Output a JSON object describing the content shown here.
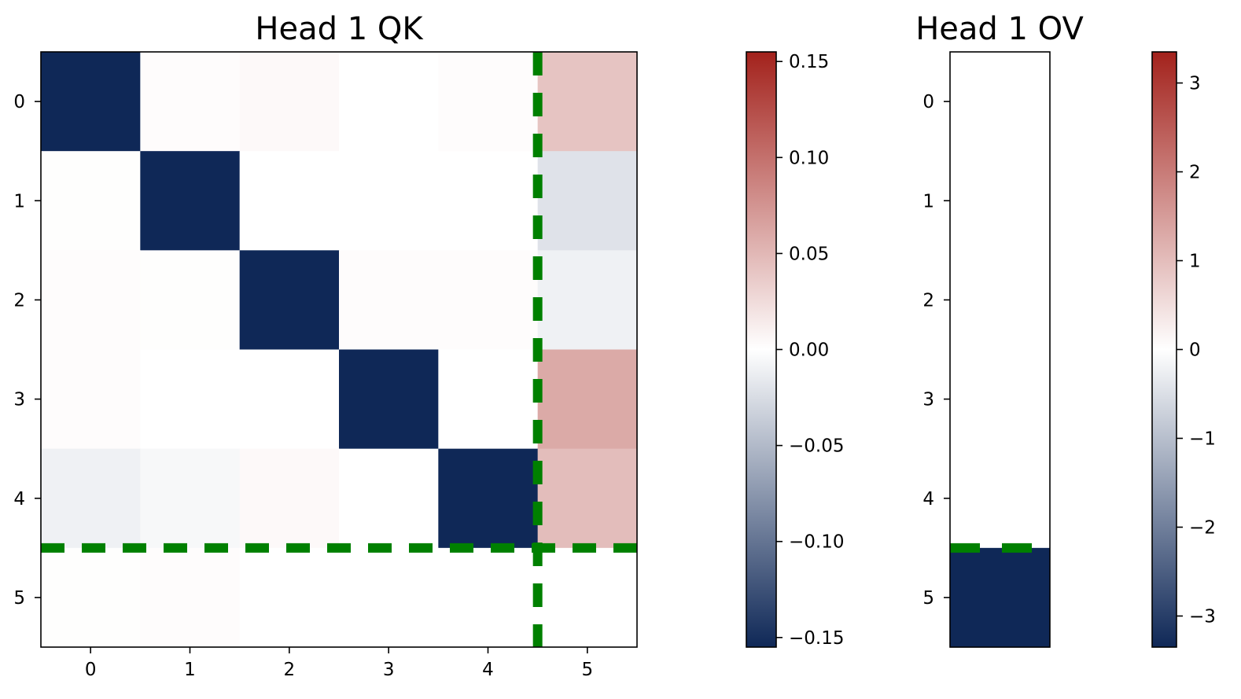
{
  "chart_data": [
    {
      "type": "heatmap",
      "title": "Head 1 QK",
      "rows": [
        "0",
        "1",
        "2",
        "3",
        "4",
        "5"
      ],
      "cols": [
        "0",
        "1",
        "2",
        "3",
        "4",
        "5"
      ],
      "values": [
        [
          -0.16,
          0.002,
          0.004,
          0.0,
          0.002,
          0.04
        ],
        [
          0.001,
          -0.16,
          0.0,
          0.0,
          0.0,
          -0.02
        ],
        [
          0.002,
          0.001,
          -0.155,
          0.002,
          0.002,
          -0.01
        ],
        [
          0.002,
          0.0,
          0.0,
          -0.16,
          0.0,
          0.058
        ],
        [
          -0.01,
          -0.005,
          0.004,
          0.0,
          -0.16,
          0.045
        ],
        [
          0.001,
          0.002,
          0.0,
          0.0,
          0.0,
          0.0
        ]
      ],
      "clim": [
        -0.15,
        0.15
      ],
      "colorbar_ticks": [
        "0.15",
        "0.10",
        "0.05",
        "0.00",
        "−0.05",
        "−0.10",
        "−0.15"
      ],
      "colorbar_tick_values": [
        0.15,
        0.1,
        0.05,
        0.0,
        -0.05,
        -0.1,
        -0.15
      ],
      "divider_lines": {
        "horizontal_after_row": 4.5,
        "vertical_after_col": 4.5
      }
    },
    {
      "type": "heatmap",
      "title": "Head 1 OV",
      "rows": [
        "0",
        "1",
        "2",
        "3",
        "4",
        "5"
      ],
      "cols": [],
      "values": [
        [
          0.0
        ],
        [
          0.0
        ],
        [
          0.0
        ],
        [
          0.0
        ],
        [
          0.0
        ],
        [
          -3.4
        ]
      ],
      "clim": [
        -3.3,
        3.3
      ],
      "colorbar_ticks": [
        "3",
        "2",
        "1",
        "0",
        "−1",
        "−2",
        "−3"
      ],
      "colorbar_tick_values": [
        3,
        2,
        1,
        0,
        -1,
        -2,
        -3
      ],
      "divider_lines": {
        "horizontal_after_row": 4.5
      }
    }
  ],
  "colors": {
    "cmap_low": "#0f2857",
    "cmap_mid": "#ffffff",
    "cmap_high": "#a3221c",
    "divider": "#008000"
  }
}
